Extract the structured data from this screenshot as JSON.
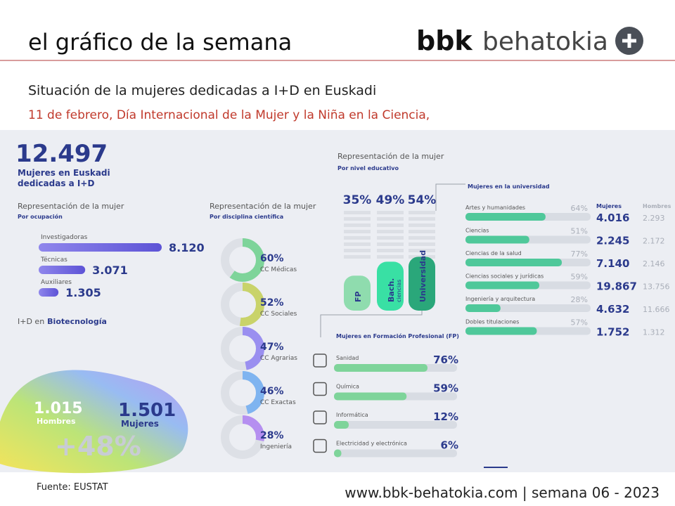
{
  "header": {
    "title": "el gráfico de la semana",
    "brand_bold": "bbk",
    "brand": "behatokia"
  },
  "subtitle": "Situación de la mujeres dedicadas a I+D en Euskadi",
  "note": "11 de febrero, Día Internacional de la Mujer y la Niña en la Ciencia,",
  "total": {
    "number": "12.497",
    "lines": [
      "Mujeres en Euskadi",
      "dedicadas a I+D"
    ]
  },
  "occupation": {
    "title": "Representación de la mujer",
    "subtitle": "Por ocupación",
    "items": [
      {
        "name": "Investigadoras",
        "value": 8120,
        "label": "8.120"
      },
      {
        "name": "Técnicas",
        "value": 3071,
        "label": "3.071"
      },
      {
        "name": "Auxiliares",
        "value": 1305,
        "label": "1.305"
      }
    ]
  },
  "biotech": {
    "title_prefix": "I+D en",
    "title_bold": "Biotecnología",
    "men": {
      "number": "1.015",
      "label": "Hombres"
    },
    "women": {
      "number": "1.501",
      "label": "Mujeres"
    },
    "growth": "+48%"
  },
  "discipline": {
    "title": "Representación de la mujer",
    "subtitle": "Por disciplina científica",
    "items": [
      {
        "name": "CC Médicas",
        "value": 60,
        "label": "60%"
      },
      {
        "name": "CC Sociales",
        "value": 52,
        "label": "52%"
      },
      {
        "name": "CC Agrarias",
        "value": 47,
        "label": "47%"
      },
      {
        "name": "CC Exactas",
        "value": 46,
        "label": "46%"
      },
      {
        "name": "Ingeniería",
        "value": 28,
        "label": "28%"
      }
    ]
  },
  "education": {
    "title": "Representación de la mujer",
    "subtitle": "Por nivel educativo",
    "items": [
      {
        "name": "FP",
        "value": 35,
        "label": "35%"
      },
      {
        "name": "Bach.",
        "detail": "ciencias",
        "value": 49,
        "label": "49%"
      },
      {
        "name": "Universidad",
        "value": 54,
        "label": "54%"
      }
    ]
  },
  "university": {
    "title": "Mujeres en la universidad",
    "col_women": "Mujeres",
    "col_men": "Hombres",
    "rows": [
      {
        "name": "Artes y humanidades",
        "value": 64,
        "label": "64%",
        "women": "4.016",
        "men": "2.293"
      },
      {
        "name": "Ciencias",
        "value": 51,
        "label": "51%",
        "women": "2.245",
        "men": "2.172"
      },
      {
        "name": "Ciencias de la salud",
        "value": 77,
        "label": "77%",
        "women": "7.140",
        "men": "2.146"
      },
      {
        "name": "Ciencias sociales y jurídicas",
        "value": 59,
        "label": "59%",
        "women": "19.867",
        "men": "13.756"
      },
      {
        "name": "Ingeniería y arquitectura",
        "value": 28,
        "label": "28%",
        "women": "4.632",
        "men": "11.666"
      },
      {
        "name": "Dobles titulaciones",
        "value": 57,
        "label": "57%",
        "women": "1.752",
        "men": "1.312"
      }
    ]
  },
  "fp": {
    "title": "Mujeres en Formación Profesional (FP)",
    "rows": [
      {
        "name": "Sanidad",
        "value": 76,
        "label": "76%"
      },
      {
        "name": "Química",
        "value": 59,
        "label": "59%"
      },
      {
        "name": "Informática",
        "value": 12,
        "label": "12%"
      },
      {
        "name": "Electricidad y electrónica",
        "value": 6,
        "label": "6%"
      }
    ]
  },
  "footer": {
    "source": "Fuente: EUSTAT",
    "site": "www.bbk-behatokia.com | semana 06 - 2023"
  }
}
